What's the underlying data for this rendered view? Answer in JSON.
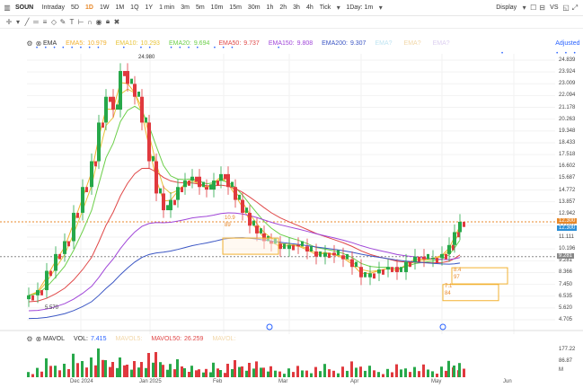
{
  "topbar": {
    "symbol": "SOUN",
    "timeframes": [
      "Intraday",
      "5D",
      "1D",
      "1W",
      "1M",
      "1Q",
      "1Y",
      "1 min",
      "3m",
      "5m",
      "10m",
      "15m",
      "30m",
      "1h",
      "2h",
      "3h",
      "4h",
      "Tick"
    ],
    "active_timeframe": "1D",
    "interval_select": "1Day: 1m",
    "display_label": "Display",
    "vs_label": "VS"
  },
  "indicators": {
    "name": "EMA",
    "items": [
      {
        "label": "EMA5:",
        "value": "10.979",
        "color": "#f2b130"
      },
      {
        "label": "EMA10:",
        "value": "10.293",
        "color": "#e8c43a"
      },
      {
        "label": "EMA20:",
        "value": "9.694",
        "color": "#6ccf4a"
      },
      {
        "label": "EMA50:",
        "value": "9.737",
        "color": "#e04848"
      },
      {
        "label": "EMA150:",
        "value": "9.808",
        "color": "#a046d8"
      },
      {
        "label": "EMA200:",
        "value": "9.307",
        "color": "#3b56c4"
      },
      {
        "label": "EMA?",
        "value": "",
        "color": "#bfe4f2"
      },
      {
        "label": "EMA?",
        "value": "",
        "color": "#f2d7a8"
      },
      {
        "label": "EMA?",
        "value": "",
        "color": "#dccff0"
      }
    ],
    "adjusted_label": "Adjusted"
  },
  "price_axis": [
    "24.839",
    "23.924",
    "23.009",
    "22.094",
    "21.178",
    "20.263",
    "19.348",
    "18.433",
    "17.518",
    "16.602",
    "15.687",
    "14.772",
    "13.857",
    "12.942",
    "12.027",
    "11.111",
    "10.196",
    "9.281",
    "8.366",
    "7.450",
    "6.535",
    "5.620",
    "4.705"
  ],
  "last_price": "12.300",
  "current_price": "12.300",
  "ref_price": "9.281",
  "annotations": {
    "high": "24.980",
    "low": "5.570",
    "box1_top": "10.9",
    "box1_bottom": "89",
    "box2_top": "8.4",
    "box2_bottom": "97",
    "box3_top": "7.1",
    "box3_bottom": "84"
  },
  "volume": {
    "label": "MAVOL",
    "vol_label": "VOL:",
    "vol_value": "7.415",
    "mavol5": "MAVOL5:",
    "mavol50_label": "MAVOL50:",
    "mavol50_value": "26.259",
    "mavol_ghost": "MAVOL:",
    "axis": [
      "177.22",
      "86.87",
      "M"
    ]
  },
  "dates": [
    "Dec 2024",
    "Jan 2025",
    "Feb",
    "Mar",
    "Apr",
    "May",
    "Jun"
  ],
  "colors": {
    "up": "#27a84a",
    "down": "#e0393e",
    "accent": "#e8892b",
    "link": "#2962ff"
  }
}
